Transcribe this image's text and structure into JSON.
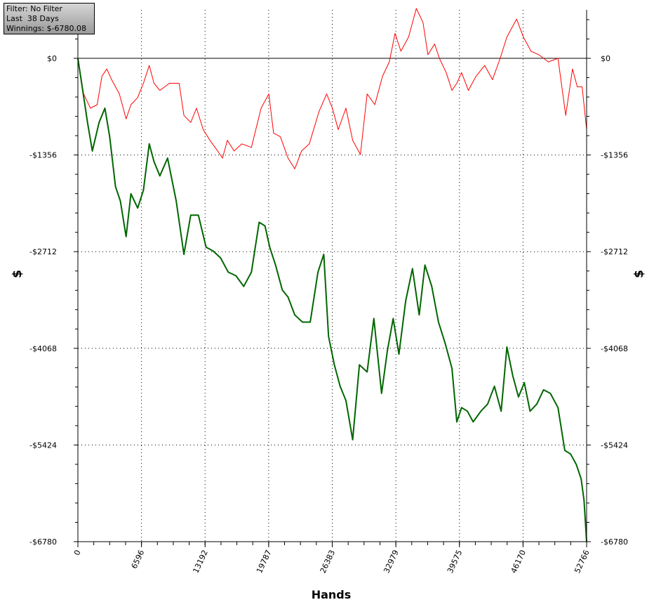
{
  "info_box": {
    "filter": "Filter: No Filter",
    "period": "Last  38 Days",
    "winnings": "Winnings: $-6780.08"
  },
  "chart_data": {
    "type": "line",
    "xlabel": "Hands",
    "ylabel": "$",
    "xlim": [
      0,
      52766
    ],
    "ylim": [
      -6780,
      680
    ],
    "x_ticks": [
      0,
      6596,
      13192,
      19787,
      26383,
      32979,
      39575,
      46170,
      52766
    ],
    "x_tick_labels": [
      "0",
      "6596",
      "13192",
      "19787",
      "26383",
      "32979",
      "39575",
      "46170",
      "52766"
    ],
    "y_ticks": [
      0,
      -1356,
      -2712,
      -4068,
      -5424,
      -6780
    ],
    "y_tick_labels": [
      "$0",
      "-$1356",
      "-$2712",
      "-$4068",
      "-$5424",
      "-$6780"
    ],
    "grid": true,
    "series": [
      {
        "color": "#ff0000",
        "x": [
          0,
          600,
          1300,
          2000,
          2500,
          3000,
          3500,
          4300,
          5000,
          5500,
          6200,
          6800,
          7400,
          7900,
          8500,
          9500,
          10500,
          11000,
          11700,
          12300,
          13000,
          13700,
          14500,
          15000,
          15500,
          16200,
          17000,
          18000,
          19000,
          19800,
          20300,
          21000,
          21800,
          22500,
          23200,
          24000,
          25000,
          25800,
          26400,
          27000,
          27800,
          28500,
          29300,
          30000,
          30800,
          31600,
          32300,
          32900,
          33500,
          34300,
          35100,
          35800,
          36300,
          37000,
          37500,
          38200,
          38800,
          39300,
          39800,
          40500,
          41300,
          42200,
          43000,
          43800,
          44500,
          45500,
          46200,
          47000,
          47800,
          48800,
          49800,
          50600,
          51300,
          51800,
          52300,
          52766
        ],
        "values": [
          0,
          -500,
          -700,
          -650,
          -250,
          -150,
          -300,
          -500,
          -850,
          -650,
          -550,
          -350,
          -100,
          -350,
          -450,
          -350,
          -350,
          -800,
          -900,
          -700,
          -1000,
          -1150,
          -1300,
          -1400,
          -1150,
          -1300,
          -1200,
          -1250,
          -700,
          -500,
          -1050,
          -1100,
          -1400,
          -1550,
          -1300,
          -1200,
          -750,
          -500,
          -700,
          -1000,
          -700,
          -1150,
          -1350,
          -500,
          -650,
          -250,
          -50,
          350,
          100,
          300,
          700,
          500,
          50,
          200,
          0,
          -200,
          -450,
          -350,
          -200,
          -450,
          -250,
          -100,
          -300,
          0,
          300,
          550,
          300,
          100,
          50,
          -50,
          0,
          -800,
          -150,
          -400,
          -400,
          -1000
        ]
      },
      {
        "color": "#006600",
        "x": [
          0,
          500,
          1000,
          1500,
          2200,
          2800,
          3300,
          3900,
          4400,
          5000,
          5500,
          6200,
          6800,
          7400,
          7900,
          8500,
          9300,
          10200,
          11000,
          11700,
          12500,
          13300,
          14000,
          14800,
          15600,
          16400,
          17200,
          18000,
          18800,
          19400,
          19900,
          20500,
          21200,
          21800,
          22500,
          23300,
          24100,
          24900,
          25500,
          26000,
          26600,
          27200,
          27800,
          28500,
          29200,
          30000,
          30700,
          31500,
          32100,
          32700,
          33300,
          34000,
          34700,
          35400,
          36000,
          36700,
          37400,
          38100,
          38800,
          39300,
          39800,
          40400,
          41000,
          41800,
          42500,
          43200,
          43900,
          44500,
          45100,
          45700,
          46300,
          46900,
          47600,
          48300,
          49000,
          49800,
          50500,
          51100,
          51700,
          52200,
          52500,
          52766
        ],
        "values": [
          0,
          -450,
          -900,
          -1300,
          -900,
          -700,
          -1100,
          -1800,
          -2000,
          -2500,
          -1900,
          -2100,
          -1850,
          -1200,
          -1450,
          -1650,
          -1400,
          -2000,
          -2750,
          -2200,
          -2200,
          -2650,
          -2700,
          -2800,
          -3000,
          -3050,
          -3200,
          -3000,
          -2300,
          -2350,
          -2650,
          -2900,
          -3250,
          -3350,
          -3600,
          -3700,
          -3700,
          -3000,
          -2750,
          -3900,
          -4300,
          -4600,
          -4800,
          -5350,
          -4300,
          -4400,
          -3650,
          -4700,
          -4100,
          -3650,
          -4150,
          -3400,
          -2950,
          -3600,
          -2900,
          -3200,
          -3700,
          -4000,
          -4350,
          -5100,
          -4900,
          -4950,
          -5100,
          -4950,
          -4850,
          -4600,
          -4950,
          -4050,
          -4450,
          -4750,
          -4550,
          -4950,
          -4850,
          -4650,
          -4700,
          -4900,
          -5500,
          -5550,
          -5700,
          -5900,
          -6200,
          -6780
        ]
      }
    ]
  }
}
